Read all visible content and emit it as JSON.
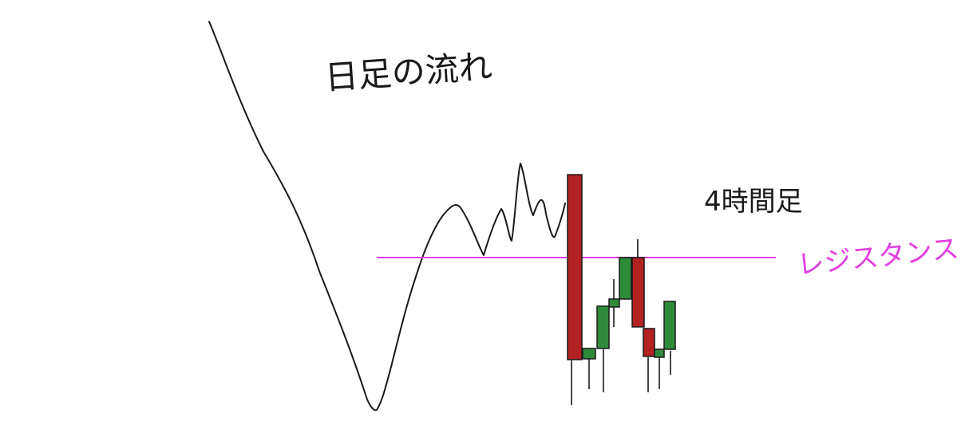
{
  "labels": {
    "daily_flow": "日足の流れ",
    "four_hour": "4時間足",
    "resistance": "レジスタンス"
  },
  "colors": {
    "background": "#ffffff",
    "ink": "#1a1a1a",
    "resistance_line": "#e040e0",
    "bearish_candle": "#b22222",
    "bullish_candle": "#2e8b3a",
    "candle_border": "#1a1a1a"
  }
}
